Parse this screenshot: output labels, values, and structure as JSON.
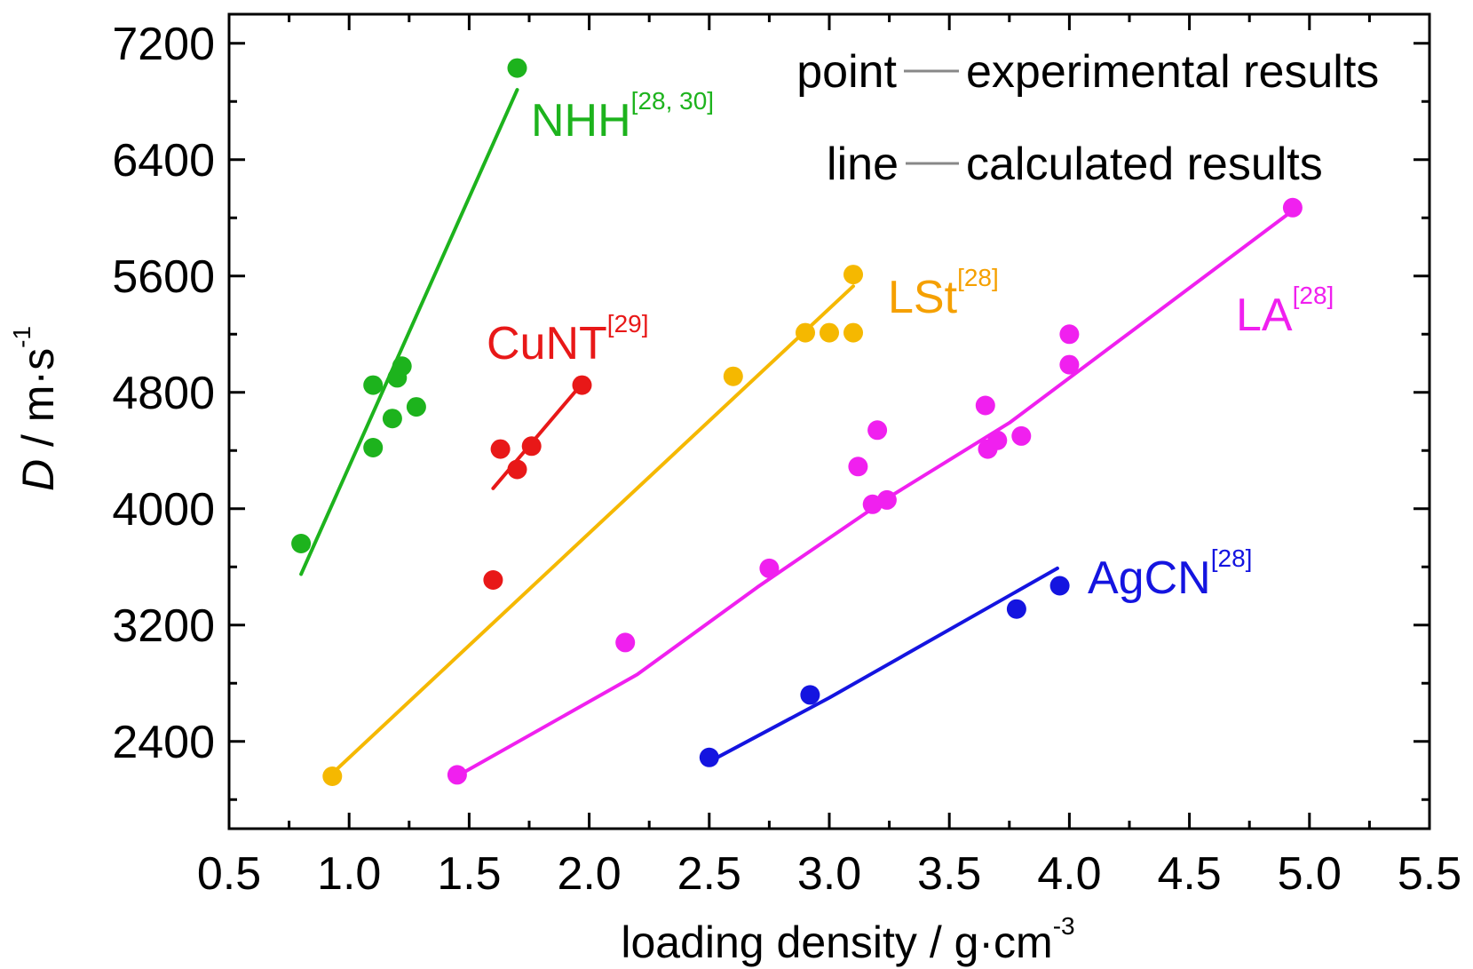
{
  "chart_data": {
    "type": "scatter",
    "xlabel": "loading density / g·cm",
    "xlabel_sup": "-3",
    "ylabel_italic": "D",
    "ylabel_rest": " / m·s",
    "ylabel_sup": "-1",
    "xlim": [
      0.5,
      5.5
    ],
    "ylim": [
      1800,
      7400
    ],
    "x_ticks": [
      0.5,
      1.0,
      1.5,
      2.0,
      2.5,
      3.0,
      3.5,
      4.0,
      4.5,
      5.0,
      5.5
    ],
    "x_tick_labels": [
      "0.5",
      "1.0",
      "1.5",
      "2.0",
      "2.5",
      "3.0",
      "3.5",
      "4.0",
      "4.5",
      "5.0",
      "5.5"
    ],
    "y_ticks": [
      2400,
      3200,
      4000,
      4800,
      5600,
      6400,
      7200
    ],
    "y_tick_labels": [
      "2400",
      "3200",
      "4000",
      "4800",
      "5600",
      "6400",
      "7200"
    ],
    "grid": false,
    "legend": {
      "position": "top-right",
      "items": [
        {
          "prefix": "point",
          "text": "experimental results"
        },
        {
          "prefix": "line",
          "text": "calculated results"
        }
      ]
    },
    "series": [
      {
        "name": "NHH",
        "ref": "[28, 30]",
        "color": "#1db31d",
        "points": [
          [
            0.8,
            3760
          ],
          [
            1.1,
            4420
          ],
          [
            1.1,
            4850
          ],
          [
            1.18,
            4620
          ],
          [
            1.2,
            4900
          ],
          [
            1.22,
            4980
          ],
          [
            1.28,
            4700
          ],
          [
            1.7,
            7030
          ]
        ],
        "line": [
          [
            0.8,
            3550
          ],
          [
            1.7,
            6880
          ]
        ]
      },
      {
        "name": "CuNT",
        "ref": "[29]",
        "color": "#e81818",
        "points": [
          [
            1.6,
            3510
          ],
          [
            1.63,
            4410
          ],
          [
            1.7,
            4270
          ],
          [
            1.76,
            4430
          ],
          [
            1.97,
            4850
          ]
        ],
        "line": [
          [
            1.6,
            4140
          ],
          [
            1.97,
            4860
          ]
        ]
      },
      {
        "name": "LSt",
        "ref": "[28]",
        "color": "#f5b800",
        "points": [
          [
            0.93,
            2160
          ],
          [
            2.6,
            4910
          ],
          [
            2.9,
            5210
          ],
          [
            3.0,
            5210
          ],
          [
            3.1,
            5210
          ],
          [
            3.1,
            5610
          ]
        ],
        "line": [
          [
            0.93,
            2180
          ],
          [
            3.1,
            5530
          ]
        ]
      },
      {
        "name": "LA",
        "ref": "[28]",
        "color": "#f020ef",
        "points": [
          [
            1.45,
            2170
          ],
          [
            2.15,
            3080
          ],
          [
            2.75,
            3590
          ],
          [
            3.12,
            4290
          ],
          [
            3.18,
            4030
          ],
          [
            3.2,
            4540
          ],
          [
            3.24,
            4060
          ],
          [
            3.65,
            4710
          ],
          [
            3.66,
            4410
          ],
          [
            3.7,
            4470
          ],
          [
            3.8,
            4500
          ],
          [
            4.0,
            4990
          ],
          [
            4.0,
            5200
          ],
          [
            4.93,
            6070
          ]
        ],
        "line": [
          [
            1.47,
            2180
          ],
          [
            2.2,
            2860
          ],
          [
            2.7,
            3460
          ],
          [
            3.25,
            4080
          ],
          [
            3.75,
            4590
          ],
          [
            4.93,
            6050
          ]
        ]
      },
      {
        "name": "AgCN",
        "ref": "[28]",
        "color": "#1414e0",
        "points": [
          [
            2.5,
            2290
          ],
          [
            2.92,
            2720
          ],
          [
            3.78,
            3310
          ],
          [
            3.96,
            3470
          ]
        ],
        "line": [
          [
            2.5,
            2260
          ],
          [
            3.0,
            2700
          ],
          [
            3.95,
            3590
          ]
        ]
      }
    ]
  }
}
